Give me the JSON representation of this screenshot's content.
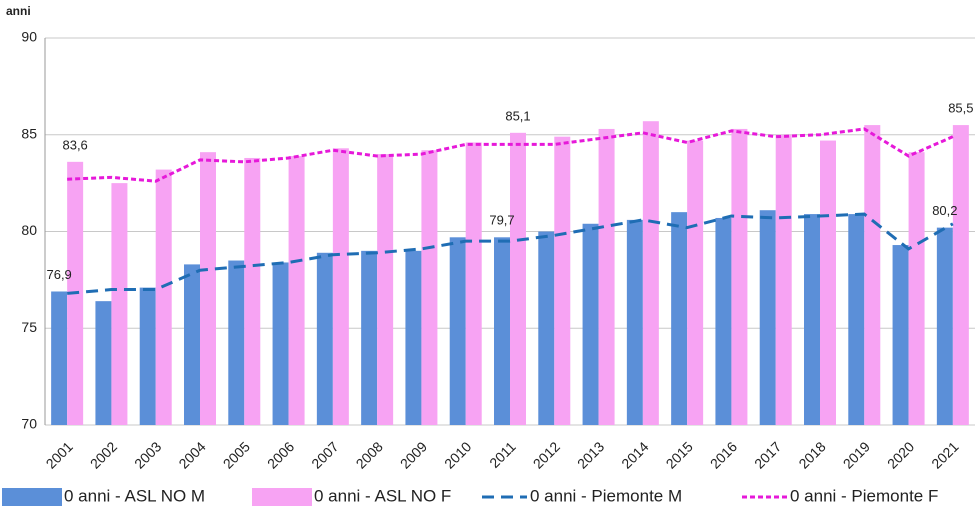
{
  "chart_data": {
    "type": "bar-line",
    "y_label": "anni",
    "categories": [
      "2001",
      "2002",
      "2003",
      "2004",
      "2005",
      "2006",
      "2007",
      "2008",
      "2009",
      "2010",
      "2011",
      "2012",
      "2013",
      "2014",
      "2015",
      "2016",
      "2017",
      "2018",
      "2019",
      "2020",
      "2021"
    ],
    "series": [
      {
        "name": "0 anni - ASL NO M",
        "type": "bar",
        "color": "#5b8fd8",
        "values": [
          76.9,
          76.4,
          77.1,
          78.3,
          78.5,
          78.4,
          78.9,
          79.0,
          79.0,
          79.7,
          79.7,
          80.0,
          80.4,
          80.6,
          81.0,
          80.7,
          81.1,
          80.9,
          80.9,
          79.3,
          80.2
        ],
        "value_labels": [
          "76,9",
          null,
          null,
          null,
          null,
          null,
          null,
          null,
          null,
          null,
          "79,7",
          null,
          null,
          null,
          null,
          null,
          null,
          null,
          null,
          null,
          "80,2"
        ]
      },
      {
        "name": "0 anni - ASL NO F",
        "type": "bar",
        "color": "#f7a3f3",
        "values": [
          83.6,
          82.5,
          83.2,
          84.1,
          83.8,
          83.9,
          84.3,
          84.0,
          84.2,
          84.6,
          85.1,
          84.9,
          85.3,
          85.7,
          84.7,
          85.3,
          85.0,
          84.7,
          85.5,
          84.1,
          85.5
        ],
        "value_labels": [
          "83,6",
          null,
          null,
          null,
          null,
          null,
          null,
          null,
          null,
          null,
          "85,1",
          null,
          null,
          null,
          null,
          null,
          null,
          null,
          null,
          null,
          "85,5"
        ]
      },
      {
        "name": "0 anni - Piemonte M",
        "type": "line",
        "color": "#1f6db4",
        "values": [
          76.8,
          77.0,
          77.0,
          78.0,
          78.2,
          78.4,
          78.8,
          78.9,
          79.1,
          79.5,
          79.5,
          79.8,
          80.2,
          80.6,
          80.2,
          80.8,
          80.7,
          80.8,
          80.9,
          79.1,
          80.4
        ]
      },
      {
        "name": "0 anni - Piemonte F",
        "type": "line",
        "color": "#e619d9",
        "values": [
          82.7,
          82.8,
          82.6,
          83.7,
          83.6,
          83.8,
          84.2,
          83.9,
          84.0,
          84.5,
          84.5,
          84.5,
          84.8,
          85.1,
          84.6,
          85.2,
          84.9,
          85.0,
          85.3,
          83.9,
          84.9
        ]
      }
    ],
    "ylim": [
      70,
      90
    ],
    "yticks": [
      70,
      75,
      80,
      85,
      90
    ],
    "grid": true
  }
}
